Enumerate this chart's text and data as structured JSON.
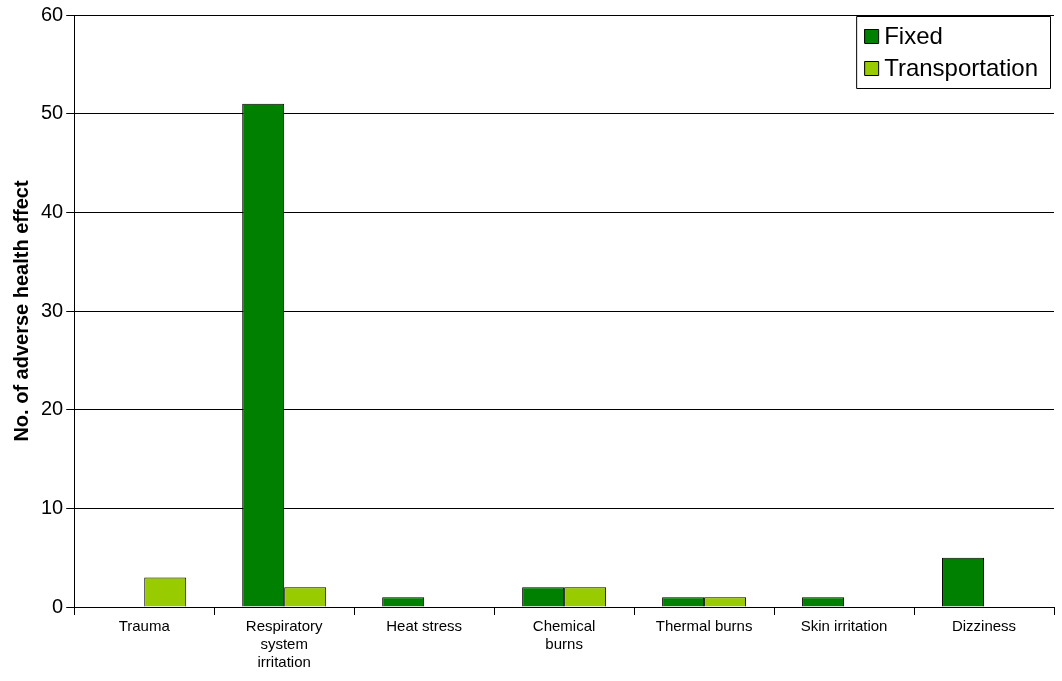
{
  "chart_data": {
    "type": "bar",
    "ylabel": "No. of adverse health effect",
    "categories": [
      "Trauma",
      "Respiratory system irritation",
      "Heat stress",
      "Chemical burns",
      "Thermal burns",
      "Skin irritation",
      "Dizziness"
    ],
    "series": [
      {
        "name": "Fixed",
        "color": "#008000",
        "values": [
          0,
          51,
          1,
          2,
          1,
          1,
          5
        ]
      },
      {
        "name": "Transportation",
        "color": "#99cc00",
        "values": [
          3,
          2,
          0,
          2,
          1,
          0,
          0
        ]
      }
    ],
    "ylim": [
      0,
      60
    ],
    "yticks": [
      0,
      10,
      20,
      30,
      40,
      50,
      60
    ],
    "grid": "y",
    "legend": "top right"
  }
}
